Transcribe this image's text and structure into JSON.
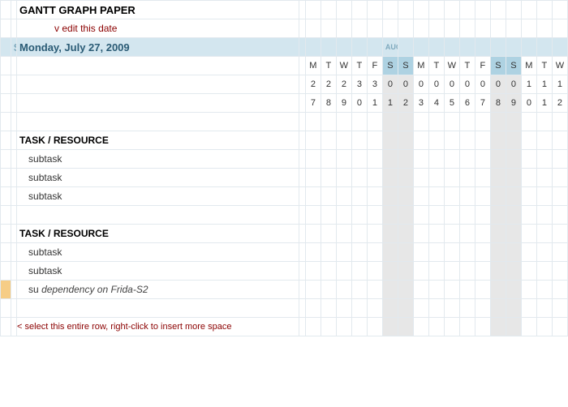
{
  "title": "GANTT GRAPH PAPER",
  "edit_hint": "v edit this date",
  "start": {
    "label": "START",
    "date": "Monday, July 27, 2009"
  },
  "month_label": "AUG",
  "columns": {
    "dow": [
      "M",
      "T",
      "W",
      "T",
      "F",
      "S",
      "S",
      "M",
      "T",
      "W",
      "T",
      "F",
      "S",
      "S",
      "M",
      "T",
      "W"
    ],
    "d1": [
      "2",
      "2",
      "2",
      "3",
      "3",
      "0",
      "0",
      "0",
      "0",
      "0",
      "0",
      "0",
      "0",
      "0",
      "1",
      "1",
      "1"
    ],
    "d2": [
      "7",
      "8",
      "9",
      "0",
      "1",
      "1",
      "2",
      "3",
      "4",
      "5",
      "6",
      "7",
      "8",
      "9",
      "0",
      "1",
      "2"
    ],
    "weekend_idx": [
      5,
      6,
      12,
      13
    ]
  },
  "groups": [
    {
      "heading": "TASK / RESOURCE",
      "subtasks": [
        {
          "label": "subtask",
          "dependency": null,
          "orange": false
        },
        {
          "label": "subtask",
          "dependency": null,
          "orange": false
        },
        {
          "label": "subtask",
          "dependency": null,
          "orange": false
        }
      ]
    },
    {
      "heading": "TASK / RESOURCE",
      "subtasks": [
        {
          "label": "subtask",
          "dependency": null,
          "orange": false
        },
        {
          "label": "subtask",
          "dependency": null,
          "orange": false
        },
        {
          "label": "su",
          "dependency": "dependency on Frida-S2",
          "orange": true
        }
      ]
    }
  ],
  "footer_hint": "< select this entire row, right-click to insert more space",
  "colors": {
    "header_band": "#d3e6ef",
    "weekend_fill": "#e7e7e7",
    "weekend_dow": "#aed2e2",
    "grid_border": "#e2e9ee",
    "hint_text": "#8b0000",
    "orange_edge": "#f6cd86"
  }
}
